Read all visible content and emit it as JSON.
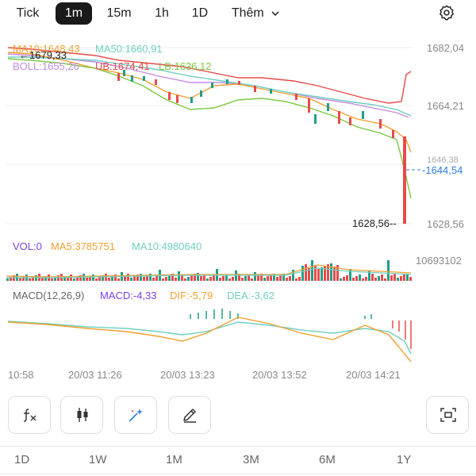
{
  "timeframes": [
    "Tick",
    "1m",
    "15m",
    "1h",
    "1D",
    "Thêm"
  ],
  "active_timeframe": "1m",
  "more_chevron_icon": "chevron-down-icon",
  "settings_icon": "gear-icon",
  "price_chart": {
    "ma_label_1": "MA10:1648,43",
    "ma50_label": "MA50:1660,91",
    "boll_label": "BOLL:1655,26",
    "ub_label": "UB:1674,41",
    "lb_label": "LB:1636,12",
    "high_marker": "1679,33",
    "low_marker": "1628,56",
    "current_price": "1644,54",
    "axis_labels": [
      "1682,04",
      "1664,21",
      "1646,38",
      "1628,56"
    ]
  },
  "volume": {
    "vol_label": "VOL:0",
    "ma5_label": "MA5:3785751",
    "ma10_label": "MA10:4980640",
    "axis_max": "10693102"
  },
  "macd": {
    "title": "MACD(12,26,9)",
    "macd_label": "MACD:-4,33",
    "dif_label": "DIF:-5,79",
    "dea_label": "DEA:-3,62"
  },
  "time_labels": [
    "10:58",
    "20/03 11:26",
    "20/03 13:23",
    "20/03 13:52",
    "20/03 14:21"
  ],
  "tools": [
    "function-icon",
    "candlestick-icon",
    "magic-wand-icon",
    "pencil-icon",
    "fullscreen-icon"
  ],
  "ranges": [
    "1D",
    "1W",
    "1M",
    "3M",
    "6M",
    "1Y"
  ],
  "colors": {
    "up": "#1e9e8a",
    "down": "#e84a4a",
    "ma10": "#f0a030",
    "ma50": "#6fcfc0",
    "boll": "#c58ae0",
    "ub": "#e84a4a",
    "lb": "#7ac943",
    "price_line": "#2d7de0",
    "dif": "#f0a030",
    "dea": "#6fcfc0",
    "macd_label": "#7b3fe4"
  }
}
